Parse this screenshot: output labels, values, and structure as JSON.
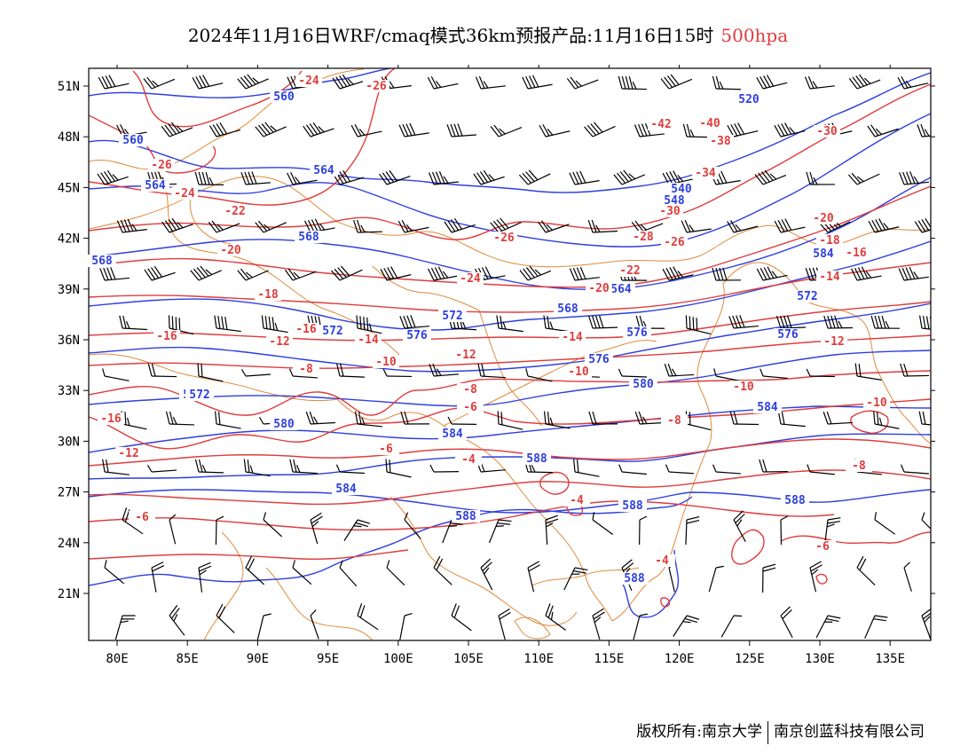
{
  "title": {
    "main": "2024年11月16日WRF/cmaq模式36km预报产品:11月16日15时",
    "level": "500hpa"
  },
  "footer": {
    "copyright": "版权所有:南京大学",
    "company": "南京创蓝科技有限公司"
  },
  "colors": {
    "height_contour": "#2d3fe0",
    "temp_contour": "#e03c3c",
    "border": "#e08a3a",
    "wind_barb": "#000000"
  },
  "axes": {
    "lon_labels": [
      "80E",
      "85E",
      "90E",
      "95E",
      "100E",
      "105E",
      "110E",
      "115E",
      "120E",
      "125E",
      "130E",
      "135E"
    ],
    "lat_labels": [
      "51N",
      "48N",
      "45N",
      "42N",
      "39N",
      "36N",
      "33N",
      "30N",
      "27N",
      "24N",
      "21N"
    ]
  },
  "contour_labels": {
    "height": [
      "560",
      "560",
      "564",
      "564",
      "568",
      "568",
      "568",
      "572",
      "572",
      "572",
      "572",
      "576",
      "576",
      "576",
      "576",
      "580",
      "580",
      "584",
      "584",
      "584",
      "588",
      "588",
      "588",
      "588",
      "588",
      "548",
      "540",
      "584",
      "564",
      "520",
      "572"
    ],
    "temperature": [
      "-24",
      "-26",
      "-26",
      "-24",
      "-22",
      "-20",
      "-18",
      "-16",
      "-16",
      "-14",
      "-14",
      "-12",
      "-12",
      "-10",
      "-10",
      "-8",
      "-8",
      "-6",
      "-6",
      "-4",
      "-4",
      "-16",
      "-12",
      "-10",
      "-8",
      "-6",
      "-42",
      "-40",
      "-38",
      "-34",
      "-30",
      "-30",
      "-28",
      "-26",
      "-22",
      "-20",
      "-20",
      "-18",
      "-16",
      "-14",
      "-12",
      "-10",
      "-8",
      "-6",
      "-4",
      "-24",
      "-26"
    ]
  }
}
